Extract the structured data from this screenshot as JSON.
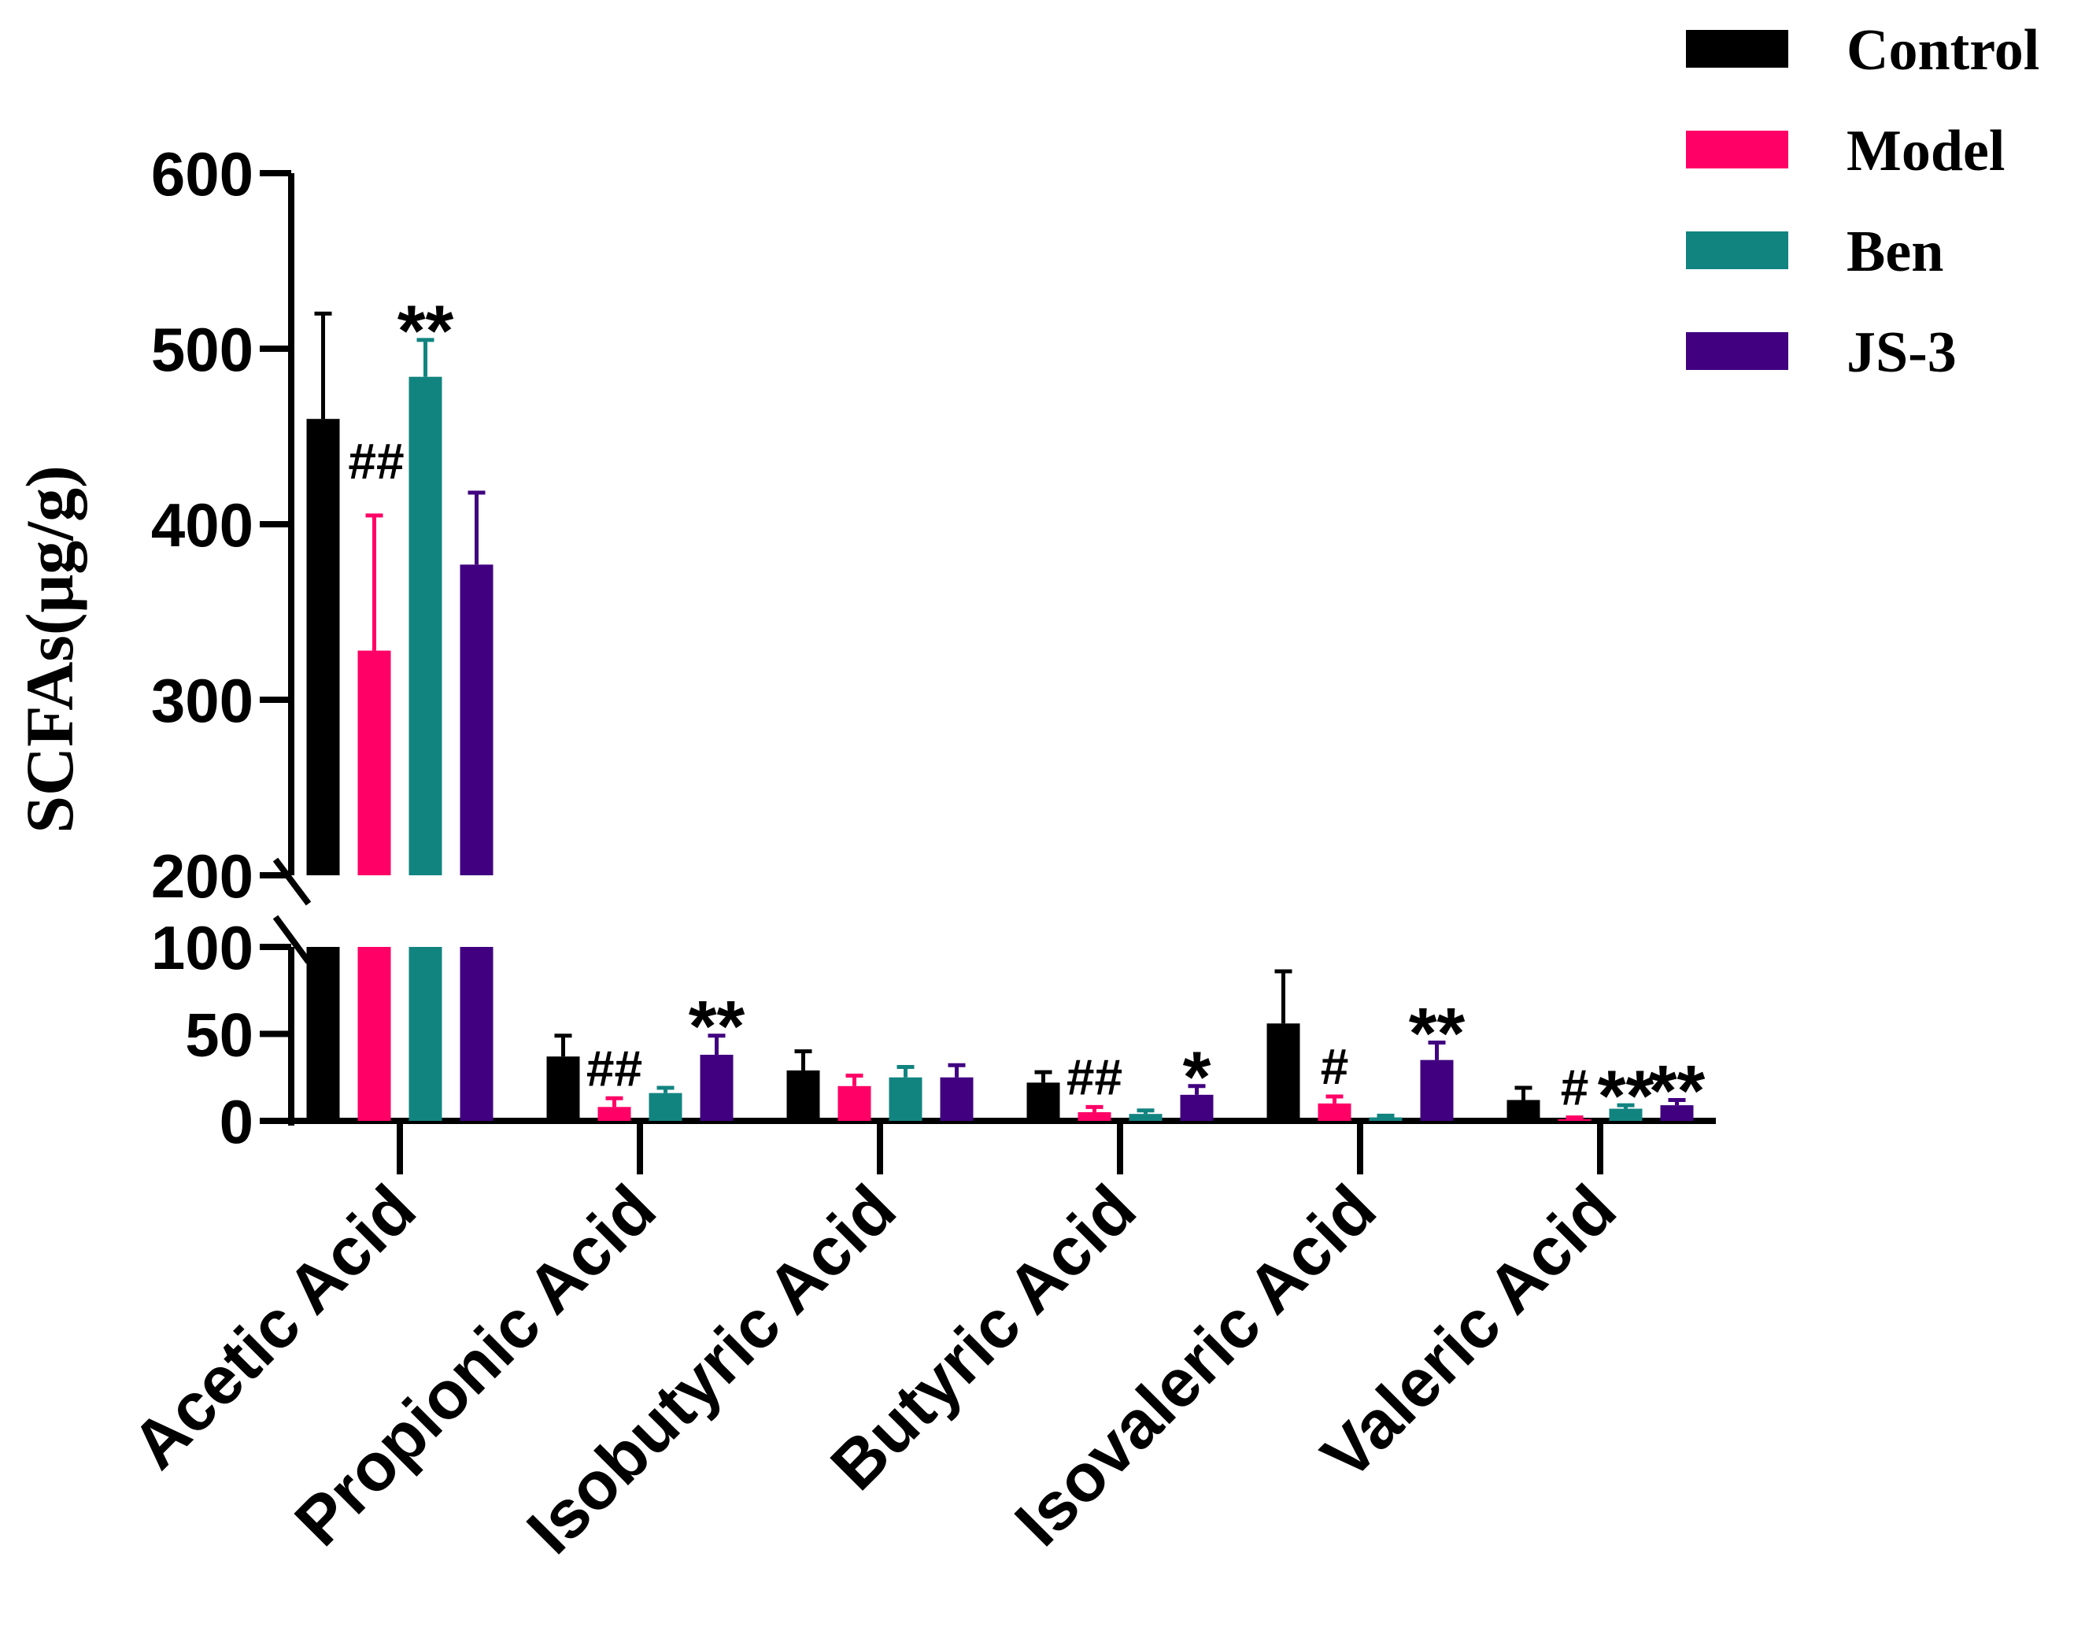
{
  "chart_data": {
    "type": "bar",
    "title": "",
    "xlabel": "",
    "ylabel": "SCFAs(μg/g)",
    "y_break": [
      100,
      200
    ],
    "ylim_lower": [
      0,
      100
    ],
    "ylim_upper": [
      200,
      600
    ],
    "yticks_lower": [
      "0",
      "50",
      "100"
    ],
    "yticks_upper": [
      "200",
      "300",
      "400",
      "500",
      "600"
    ],
    "legend_position": "top-right",
    "categories": [
      "Acetic Acid",
      "Propionic Acid",
      "Isobutyric Acid",
      "Butyric Acid",
      "Isovaleric Acid",
      "Valeric Acid"
    ],
    "series": [
      {
        "name": "Control",
        "color": "#000000",
        "values": [
          460,
          37,
          29,
          22,
          56,
          12
        ],
        "errors": [
          60,
          12,
          11,
          6,
          30,
          7
        ]
      },
      {
        "name": "Model",
        "color": "#FF0066",
        "values": [
          328,
          8,
          20,
          5,
          10,
          1
        ],
        "errors": [
          77,
          5,
          6,
          3,
          4,
          1
        ]
      },
      {
        "name": "Ben",
        "color": "#128480",
        "values": [
          484,
          16,
          25,
          4,
          2,
          7
        ],
        "errors": [
          21,
          3,
          6,
          2,
          1,
          2
        ]
      },
      {
        "name": "JS-3",
        "color": "#400080",
        "values": [
          377,
          38,
          25,
          15,
          35,
          9
        ],
        "errors": [
          41,
          11,
          7,
          5,
          10,
          3
        ]
      }
    ],
    "annotations": [
      {
        "category": 0,
        "series": 1,
        "text": "##",
        "pos": "left"
      },
      {
        "category": 0,
        "series": 2,
        "text": "**",
        "pos": "above"
      },
      {
        "category": 1,
        "series": 1,
        "text": "##",
        "pos": "above"
      },
      {
        "category": 1,
        "series": 3,
        "text": "**",
        "pos": "above"
      },
      {
        "category": 3,
        "series": 1,
        "text": "##",
        "pos": "above"
      },
      {
        "category": 3,
        "series": 3,
        "text": "*",
        "pos": "above"
      },
      {
        "category": 4,
        "series": 1,
        "text": "#",
        "pos": "above"
      },
      {
        "category": 4,
        "series": 3,
        "text": "**",
        "pos": "above"
      },
      {
        "category": 5,
        "series": 1,
        "text": "#",
        "pos": "above"
      },
      {
        "category": 5,
        "series": 2,
        "text": "**",
        "pos": "above"
      },
      {
        "category": 5,
        "series": 3,
        "text": "**",
        "pos": "above"
      }
    ]
  }
}
